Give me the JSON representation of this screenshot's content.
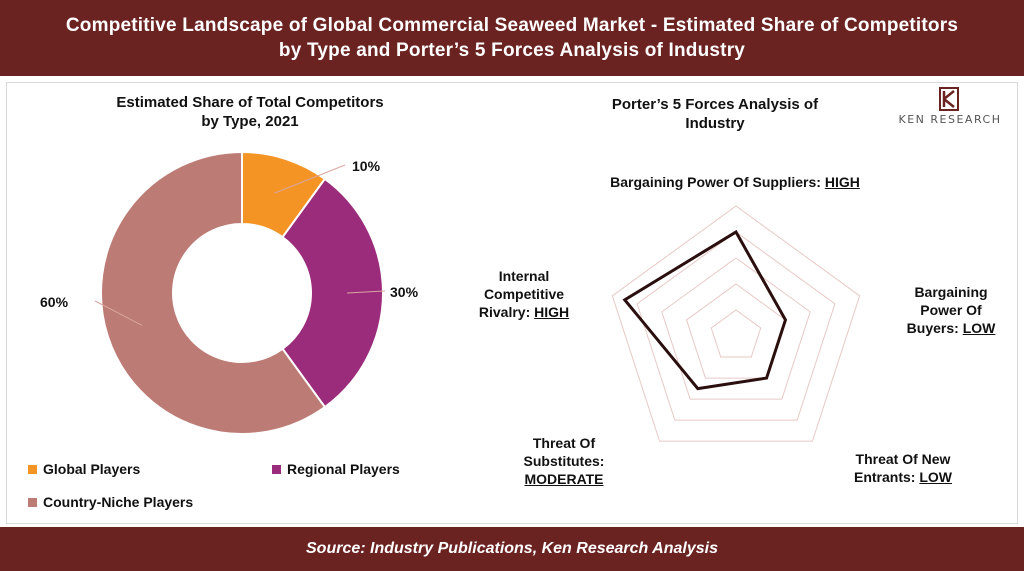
{
  "header": {
    "line1": "Competitive Landscape of Global Commercial Seaweed Market - Estimated Share of Competitors",
    "line2": "by Type and Porter’s 5 Forces Analysis of Industry"
  },
  "logo": {
    "text": "KEN RESEARCH",
    "icon": "ken-research-logo-icon"
  },
  "footer": {
    "source": "Source: Industry Publications, Ken Research Analysis"
  },
  "chart_data": [
    {
      "type": "donut",
      "title_line1": "Estimated Share of Total Competitors",
      "title_line2": "by Type, 2021",
      "unit": "%",
      "slices": [
        {
          "name": "Global Players",
          "value": 10,
          "label": "10%",
          "color": "#f39425"
        },
        {
          "name": "Regional Players",
          "value": 30,
          "label": "30%",
          "color": "#9b2c7b"
        },
        {
          "name": "Country-Niche Players",
          "value": 60,
          "label": "60%",
          "color": "#bc7b74"
        }
      ],
      "legend_position": "bottom"
    },
    {
      "type": "radar",
      "title_line1": "Porter’s 5 Forces Analysis of",
      "title_line2": "Industry",
      "levels": 5,
      "axes": [
        {
          "label": "Bargaining Power Of Suppliers:",
          "rating": "HIGH",
          "value": 4
        },
        {
          "label_line1": "Bargaining",
          "label_line2": "Power Of",
          "label_line3": "Buyers:",
          "rating": "LOW",
          "value": 2
        },
        {
          "label_line1": "Threat Of New",
          "label_line2": "Entrants:",
          "rating": "LOW",
          "value": 2
        },
        {
          "label_line1": "Threat Of",
          "label_line2": "Substitutes:",
          "rating": "MODERATE",
          "value": 2.5
        },
        {
          "label_line1": "Internal",
          "label_line2": "Competitive",
          "label_line3": "Rivalry:",
          "rating": "HIGH",
          "value": 4.5
        }
      ],
      "colors": {
        "grid": "#e7c9c6",
        "series": "#2a0f0e"
      }
    }
  ]
}
